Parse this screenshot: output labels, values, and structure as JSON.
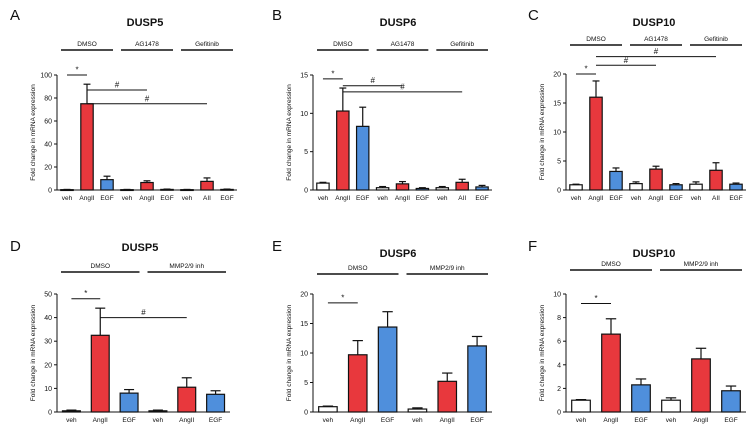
{
  "colors": {
    "white": "#ffffff",
    "red": "#e8383d",
    "blue": "#4f8fdc"
  },
  "chart_data": [
    {
      "type": "bar",
      "letter": "A",
      "title": "DUSP5",
      "ylabel": "Fold change in mRNA expression",
      "ylim": [
        0,
        100
      ],
      "yticks": [
        "0",
        "20",
        "40",
        "60",
        "80",
        "100"
      ],
      "categories": [
        "veh",
        "AngII",
        "EGF",
        "veh",
        "AngII",
        "EGF",
        "veh",
        "AII",
        "EGF"
      ],
      "values": [
        0.3,
        75,
        9,
        0.3,
        6.5,
        0.5,
        0.3,
        7.5,
        0.5
      ],
      "errors": [
        0.2,
        17,
        3,
        0.2,
        1.5,
        0.3,
        0.2,
        3,
        0.3
      ],
      "fills": [
        "white",
        "red",
        "blue",
        "white",
        "red",
        "blue",
        "white",
        "red",
        "blue"
      ],
      "groups": [
        "DMSO",
        "AG1478",
        "Gefitinib"
      ],
      "annotations": [
        {
          "text": "*",
          "from": 0,
          "to": 1,
          "y": 100
        },
        {
          "text": "#",
          "from": 1,
          "to": 4,
          "y": 87
        },
        {
          "text": "#",
          "from": 1,
          "to": 7,
          "y": 75
        }
      ]
    },
    {
      "type": "bar",
      "letter": "B",
      "title": "DUSP6",
      "ylabel": "Fold change in mRNA expression",
      "ylim": [
        0,
        15
      ],
      "yticks": [
        "0",
        "5",
        "10",
        "15"
      ],
      "categories": [
        "veh",
        "AngII",
        "EGF",
        "veh",
        "AngII",
        "EGF",
        "veh",
        "AII",
        "EGF"
      ],
      "values": [
        0.9,
        10.3,
        8.3,
        0.3,
        0.8,
        0.2,
        0.3,
        1.0,
        0.4
      ],
      "errors": [
        0.1,
        3.0,
        2.5,
        0.15,
        0.3,
        0.1,
        0.15,
        0.4,
        0.2
      ],
      "fills": [
        "white",
        "red",
        "blue",
        "white",
        "red",
        "blue",
        "white",
        "red",
        "blue"
      ],
      "groups": [
        "DMSO",
        "AG1478",
        "Gefitinib"
      ],
      "annotations": [
        {
          "text": "*",
          "from": 0,
          "to": 1,
          "y": 14.5
        },
        {
          "text": "#",
          "from": 1,
          "to": 4,
          "y": 13.6
        },
        {
          "text": "#",
          "from": 1,
          "to": 7,
          "y": 12.8
        }
      ]
    },
    {
      "type": "bar",
      "letter": "C",
      "title": "DUSP10",
      "ylabel": "Fold change in mRNA expression",
      "ylim": [
        0,
        20
      ],
      "yticks": [
        "0",
        "5",
        "10",
        "15",
        "20"
      ],
      "categories": [
        "veh",
        "AngII",
        "EGF",
        "veh",
        "AngII",
        "EGF",
        "veh",
        "AII",
        "EGF"
      ],
      "values": [
        0.9,
        16,
        3.2,
        1.1,
        3.6,
        0.9,
        1.0,
        3.4,
        1.0
      ],
      "errors": [
        0.1,
        2.8,
        0.6,
        0.3,
        0.5,
        0.2,
        0.4,
        1.3,
        0.2
      ],
      "fills": [
        "white",
        "red",
        "blue",
        "white",
        "red",
        "blue",
        "white",
        "red",
        "blue"
      ],
      "groups": [
        "DMSO",
        "AG1478",
        "Gefitinib"
      ],
      "annotations": [
        {
          "text": "*",
          "from": 0,
          "to": 1,
          "y": 20
        },
        {
          "text": "#",
          "from": 1,
          "to": 4,
          "y": 21.5
        },
        {
          "text": "#",
          "from": 1,
          "to": 7,
          "y": 23
        }
      ]
    },
    {
      "type": "bar",
      "letter": "D",
      "title": "DUSP5",
      "ylabel": "Fold change in mRNA expression",
      "ylim": [
        0,
        50
      ],
      "yticks": [
        "0",
        "10",
        "20",
        "30",
        "40",
        "50"
      ],
      "categories": [
        "veh",
        "AngII",
        "EGF",
        "veh",
        "AngII",
        "EGF"
      ],
      "values": [
        0.5,
        32.5,
        8,
        0.5,
        10.5,
        7.5
      ],
      "errors": [
        0.3,
        11.5,
        1.5,
        0.3,
        4,
        1.5
      ],
      "fills": [
        "white",
        "red",
        "blue",
        "white",
        "red",
        "blue"
      ],
      "groups": [
        "DMSO",
        "MMP2/9 inh"
      ],
      "annotations": [
        {
          "text": "*",
          "from": 0,
          "to": 1,
          "y": 48
        },
        {
          "text": "#",
          "from": 1,
          "to": 4,
          "y": 40
        }
      ]
    },
    {
      "type": "bar",
      "letter": "E",
      "title": "DUSP6",
      "ylabel": "Fold change in mRNA expression",
      "ylim": [
        0,
        20
      ],
      "yticks": [
        "0",
        "5",
        "10",
        "15",
        "20"
      ],
      "categories": [
        "veh",
        "AngII",
        "EGF",
        "veh",
        "AngII",
        "EGF"
      ],
      "values": [
        0.9,
        9.7,
        14.4,
        0.5,
        5.2,
        11.2
      ],
      "errors": [
        0.1,
        2.4,
        2.6,
        0.2,
        1.4,
        1.6
      ],
      "fills": [
        "white",
        "red",
        "blue",
        "white",
        "red",
        "blue"
      ],
      "groups": [
        "DMSO",
        "MMP2/9 inh"
      ],
      "annotations": [
        {
          "text": "*",
          "from": 0,
          "to": 1,
          "y": 18.5
        }
      ]
    },
    {
      "type": "bar",
      "letter": "F",
      "title": "DUSP10",
      "ylabel": "Fold change in mRNA expression",
      "ylim": [
        0,
        10
      ],
      "yticks": [
        "0",
        "2",
        "4",
        "6",
        "8",
        "10"
      ],
      "categories": [
        "veh",
        "AngII",
        "EGF",
        "veh",
        "AngII",
        "EGF"
      ],
      "values": [
        1.0,
        6.6,
        2.3,
        1.0,
        4.5,
        1.8
      ],
      "errors": [
        0.05,
        1.3,
        0.5,
        0.2,
        0.9,
        0.4
      ],
      "fills": [
        "white",
        "red",
        "blue",
        "white",
        "red",
        "blue"
      ],
      "groups": [
        "DMSO",
        "MMP2/9 inh"
      ],
      "annotations": [
        {
          "text": "*",
          "from": 0,
          "to": 1,
          "y": 9.2
        }
      ]
    }
  ]
}
